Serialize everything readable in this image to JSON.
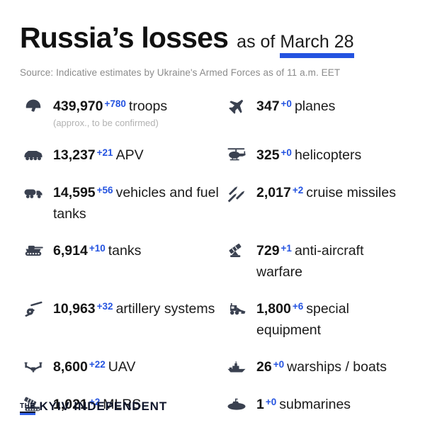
{
  "header": {
    "title": "Russia’s losses",
    "as_of": "as of",
    "date": "March 28",
    "source": "Source: Indicative estimates by Ukraine's Armed Forces as of 11 a.m. EET"
  },
  "colors": {
    "accent_blue": "#2453e0",
    "icon_color": "#3a4150",
    "text_dark": "#161616",
    "muted_gray": "#8b8b8b"
  },
  "stats": {
    "left": [
      {
        "icon": "helmet-icon",
        "value": "439,970",
        "delta": "+780",
        "label": "troops",
        "note": "(approx., to be confirmed)"
      },
      {
        "icon": "apv-icon",
        "value": "13,237",
        "delta": "+21",
        "label": "APV"
      },
      {
        "icon": "fuel-truck-icon",
        "value": "14,595",
        "delta": "+56",
        "label": "vehicles and fuel tanks"
      },
      {
        "icon": "tank-icon",
        "value": "6,914",
        "delta": "+10",
        "label": "tanks"
      },
      {
        "icon": "artillery-icon",
        "value": "10,963",
        "delta": "+32",
        "label": "artillery systems"
      },
      {
        "icon": "uav-icon",
        "value": "8,600",
        "delta": "+22",
        "label": "UAV"
      },
      {
        "icon": "mlrs-icon",
        "value": "1,021",
        "delta": "+2",
        "label": "MLRS"
      }
    ],
    "right": [
      {
        "icon": "jet-icon",
        "value": "347",
        "delta": "+0",
        "label": "planes"
      },
      {
        "icon": "helicopter-icon",
        "value": "325",
        "delta": "+0",
        "label": "helicopters"
      },
      {
        "icon": "cruise-missile-icon",
        "value": "2,017",
        "delta": "+2",
        "label": "cruise missiles"
      },
      {
        "icon": "anti-aircraft-icon",
        "value": "729",
        "delta": "+1",
        "label": "anti-aircraft warfare"
      },
      {
        "icon": "special-equipment-icon",
        "value": "1,800",
        "delta": "+6",
        "label": "special equipment"
      },
      {
        "icon": "warship-icon",
        "value": "26",
        "delta": "+0",
        "label": "warships / boats"
      },
      {
        "icon": "submarine-icon",
        "value": "1",
        "delta": "+0",
        "label": "submarines"
      }
    ]
  },
  "footer": {
    "logo_the": "THE",
    "logo_name": "KYIV INDEPENDENT"
  }
}
